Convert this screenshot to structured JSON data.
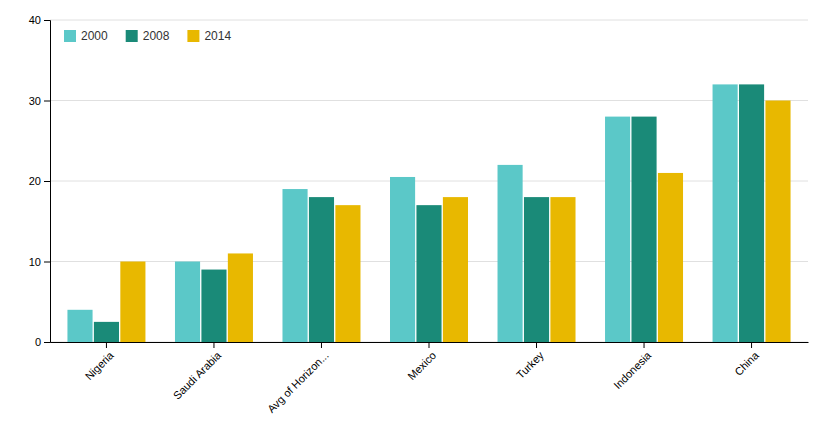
{
  "chart_data": {
    "type": "bar",
    "categories": [
      "Nigeria",
      "Saudi Arabia",
      "Avg of Horizon...",
      "Mexico",
      "Turkey",
      "Indonesia",
      "China"
    ],
    "series": [
      {
        "name": "2000",
        "color": "#5BC8C8",
        "values": [
          4.0,
          10.0,
          19.0,
          20.5,
          22.0,
          28.0,
          32.0
        ]
      },
      {
        "name": "2008",
        "color": "#1A8A78",
        "values": [
          2.5,
          9.0,
          18.0,
          17.0,
          18.0,
          28.0,
          32.0
        ]
      },
      {
        "name": "2014",
        "color": "#E8B800",
        "values": [
          10.0,
          11.0,
          17.0,
          18.0,
          18.0,
          21.0,
          30.0
        ]
      }
    ],
    "ylim": [
      0,
      40
    ],
    "yticks": [
      0,
      10,
      20,
      30,
      40
    ],
    "grid": true,
    "legend": "top-left"
  }
}
